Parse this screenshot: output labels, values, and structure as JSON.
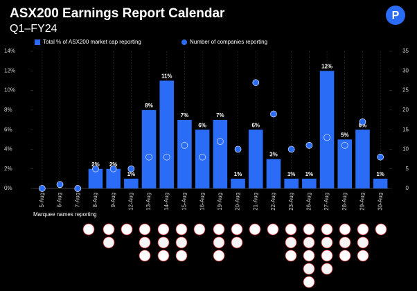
{
  "chart_data": {
    "type": "bar",
    "title": "ASX200 Earnings Report Calendar",
    "subtitle": "Q1–FY24",
    "footnote": "Marquee names reporting",
    "categories": [
      "5-Aug",
      "6-Aug",
      "7-Aug",
      "8-Aug",
      "9-Aug",
      "12-Aug",
      "13-Aug",
      "14-Aug",
      "15-Aug",
      "16-Aug",
      "19-Aug",
      "20-Aug",
      "21-Aug",
      "22-Aug",
      "23-Aug",
      "26-Aug",
      "27-Aug",
      "28-Aug",
      "29-Aug",
      "30-Aug"
    ],
    "series": [
      {
        "name": "Total % of ASX200 market cap reporting",
        "type": "bar",
        "color": "#2a6cf6",
        "values": [
          null,
          null,
          null,
          2,
          2,
          1,
          8,
          11,
          7,
          6,
          7,
          1,
          6,
          3,
          1,
          1,
          12,
          5,
          6,
          1
        ],
        "value_labels": [
          null,
          null,
          null,
          "2%",
          "2%",
          "1%",
          "8%",
          "11%",
          "7%",
          "6%",
          "7%",
          "1%",
          "6%",
          "3%",
          "1%",
          "1%",
          "12%",
          "5%",
          "6%",
          "1%"
        ]
      },
      {
        "name": "Number of companies reporting",
        "type": "scatter",
        "axis": "y2",
        "color": "#2a6cf6",
        "values": [
          0,
          1,
          0,
          5,
          5,
          5,
          8,
          8,
          11,
          8,
          12,
          10,
          27,
          19,
          10,
          11,
          13,
          11,
          17,
          8
        ]
      }
    ],
    "ylim": [
      0,
      14
    ],
    "yticks": [
      {
        "value": 0,
        "label": "0%"
      },
      {
        "value": 2,
        "label": "2%"
      },
      {
        "value": 4,
        "label": "4%"
      },
      {
        "value": 6,
        "label": "6%"
      },
      {
        "value": 8,
        "label": "8%"
      },
      {
        "value": 10,
        "label": "10%"
      },
      {
        "value": 12,
        "label": "12%"
      },
      {
        "value": 14,
        "label": "14%"
      }
    ],
    "y2lim": [
      0,
      35
    ],
    "y2ticks": [
      0,
      5,
      10,
      15,
      20,
      25,
      30,
      35
    ]
  }
}
